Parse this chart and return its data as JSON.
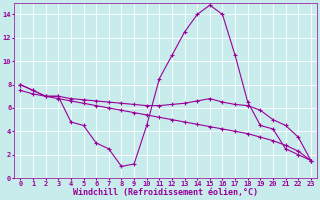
{
  "bg_color": "#c8ecec",
  "grid_color": "#ffffff",
  "line_color": "#990099",
  "xlim": [
    -0.5,
    23.5
  ],
  "ylim": [
    0,
    15
  ],
  "xticks": [
    0,
    1,
    2,
    3,
    4,
    5,
    6,
    7,
    8,
    9,
    10,
    11,
    12,
    13,
    14,
    15,
    16,
    17,
    18,
    19,
    20,
    21,
    22,
    23
  ],
  "yticks": [
    0,
    2,
    4,
    6,
    8,
    10,
    12,
    14
  ],
  "line1_x": [
    0,
    1,
    2,
    3,
    4,
    5,
    6,
    7,
    8,
    9,
    10,
    11,
    12,
    13,
    14,
    15,
    16,
    17,
    18,
    19,
    20,
    21,
    22,
    23
  ],
  "line1_y": [
    8.0,
    7.5,
    7.0,
    7.0,
    4.8,
    4.5,
    3.0,
    2.5,
    1.0,
    1.2,
    4.5,
    8.5,
    10.5,
    12.5,
    14.0,
    14.8,
    14.0,
    10.5,
    6.5,
    4.5,
    4.2,
    2.5,
    2.0,
    1.5
  ],
  "line2_x": [
    0,
    1,
    2,
    3,
    4,
    5,
    6,
    7,
    8,
    9,
    10,
    11,
    12,
    13,
    14,
    15,
    16,
    17,
    18,
    19,
    20,
    21,
    22,
    23
  ],
  "line2_y": [
    8.0,
    7.5,
    7.0,
    7.0,
    6.8,
    6.7,
    6.6,
    6.5,
    6.4,
    6.3,
    6.2,
    6.2,
    6.3,
    6.4,
    6.6,
    6.8,
    6.5,
    6.3,
    6.2,
    5.8,
    5.0,
    4.5,
    3.5,
    1.5
  ],
  "line3_x": [
    0,
    1,
    2,
    3,
    4,
    5,
    6,
    7,
    8,
    9,
    10,
    11,
    12,
    13,
    14,
    15,
    16,
    17,
    18,
    19,
    20,
    21,
    22,
    23
  ],
  "line3_y": [
    7.5,
    7.2,
    7.0,
    6.8,
    6.6,
    6.4,
    6.2,
    6.0,
    5.8,
    5.6,
    5.4,
    5.2,
    5.0,
    4.8,
    4.6,
    4.4,
    4.2,
    4.0,
    3.8,
    3.5,
    3.2,
    2.8,
    2.3,
    1.5
  ],
  "xlabel": "Windchill (Refroidissement éolien,°C)",
  "marker": "+",
  "markersize": 3,
  "linewidth": 0.8,
  "font_color": "#990099",
  "tick_fontsize": 5.0,
  "label_fontsize": 6.0
}
